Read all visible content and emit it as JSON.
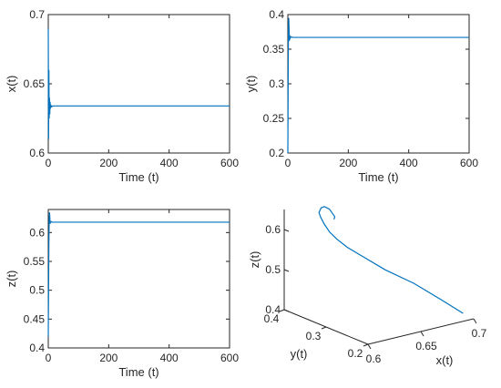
{
  "chart_data": [
    {
      "type": "line",
      "xlabel": "Time (t)",
      "ylabel": "x(t)",
      "xlim": [
        0,
        600
      ],
      "ylim": [
        0.6,
        0.7
      ],
      "xticks": [
        "0",
        "200",
        "400",
        "600"
      ],
      "yticks": [
        "0.6",
        "0.65",
        "0.7"
      ],
      "color": "#0072BD",
      "x": [
        0,
        0.5,
        1,
        2,
        3,
        4,
        5,
        6,
        7,
        8,
        9,
        10,
        12,
        15,
        20,
        30,
        600
      ],
      "y": [
        0.69,
        0.65,
        0.61,
        0.66,
        0.625,
        0.64,
        0.628,
        0.637,
        0.632,
        0.635,
        0.633,
        0.634,
        0.6335,
        0.634,
        0.634,
        0.634,
        0.634
      ]
    },
    {
      "type": "line",
      "xlabel": "Time (t)",
      "ylabel": "y(t)",
      "xlim": [
        0,
        600
      ],
      "ylim": [
        0.2,
        0.4
      ],
      "xticks": [
        "0",
        "200",
        "400",
        "600"
      ],
      "yticks": [
        "0.2",
        "0.25",
        "0.3",
        "0.35",
        "0.4"
      ],
      "color": "#0072BD",
      "x": [
        0,
        1,
        2,
        3,
        4,
        5,
        6,
        8,
        10,
        15,
        20,
        600
      ],
      "y": [
        0.2,
        0.3,
        0.375,
        0.395,
        0.38,
        0.362,
        0.37,
        0.366,
        0.368,
        0.367,
        0.367,
        0.367
      ]
    },
    {
      "type": "line",
      "xlabel": "Time (t)",
      "ylabel": "z(t)",
      "xlim": [
        0,
        600
      ],
      "ylim": [
        0.4,
        0.64
      ],
      "xticks": [
        "0",
        "200",
        "400",
        "600"
      ],
      "yticks": [
        "0.4",
        "0.45",
        "0.5",
        "0.55",
        "0.6"
      ],
      "color": "#0072BD",
      "x": [
        0,
        1,
        2,
        3,
        4,
        5,
        6,
        7,
        8,
        10,
        12,
        15,
        20,
        600
      ],
      "y": [
        0.42,
        0.5,
        0.58,
        0.62,
        0.635,
        0.628,
        0.615,
        0.62,
        0.618,
        0.619,
        0.618,
        0.618,
        0.618,
        0.618
      ]
    },
    {
      "type": "line3d",
      "xlabel": "x(t)",
      "ylabel": "y(t)",
      "zlabel": "z(t)",
      "xlim": [
        0.6,
        0.7
      ],
      "ylim": [
        0.2,
        0.4
      ],
      "zlim": [
        0.4,
        0.65
      ],
      "xticks": [
        "0.6",
        "0.65",
        "0.7"
      ],
      "yticks": [
        "0.2",
        "0.3",
        "0.4"
      ],
      "zticks": [
        "0.4",
        "0.5",
        "0.6"
      ],
      "color": "#0072BD",
      "x": [
        0.69,
        0.685,
        0.675,
        0.66,
        0.648,
        0.638,
        0.632,
        0.628,
        0.626,
        0.625,
        0.625,
        0.629,
        0.634,
        0.638,
        0.636,
        0.634
      ],
      "y": [
        0.2,
        0.24,
        0.28,
        0.31,
        0.33,
        0.345,
        0.355,
        0.362,
        0.37,
        0.376,
        0.38,
        0.385,
        0.39,
        0.388,
        0.37,
        0.367
      ],
      "z": [
        0.42,
        0.44,
        0.47,
        0.5,
        0.53,
        0.555,
        0.575,
        0.592,
        0.61,
        0.625,
        0.635,
        0.642,
        0.64,
        0.632,
        0.622,
        0.618
      ]
    }
  ]
}
